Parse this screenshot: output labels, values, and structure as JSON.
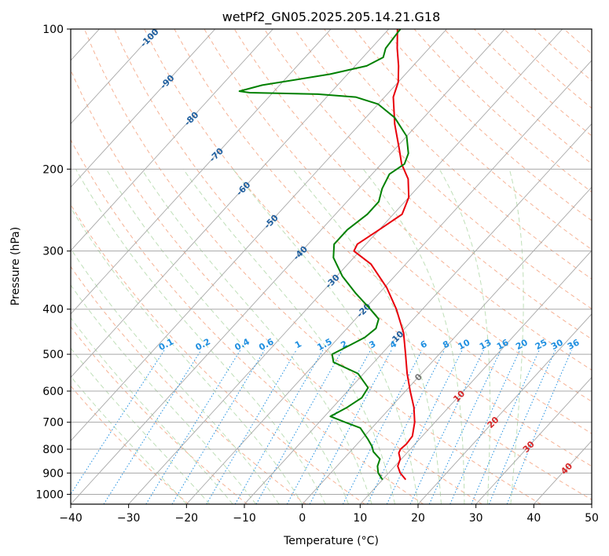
{
  "chart_data": {
    "type": "skew-t",
    "title": "wetPf2_GN05.2025.205.14.21.G18",
    "xlabel": "Temperature (°C)",
    "ylabel": "Pressure (hPa)",
    "xlim": [
      -40,
      50
    ],
    "ylim_pressure": [
      1050,
      100
    ],
    "x_ticks": [
      -40,
      -30,
      -20,
      -10,
      0,
      10,
      20,
      30,
      40,
      50
    ],
    "x_tick_labels": [
      "−40",
      "−30",
      "−20",
      "−10",
      "0",
      "10",
      "20",
      "30",
      "40",
      "50"
    ],
    "y_ticks": [
      100,
      200,
      300,
      400,
      500,
      600,
      700,
      800,
      900,
      1000
    ],
    "y_tick_labels": [
      "100",
      "200",
      "300",
      "400",
      "500",
      "600",
      "700",
      "800",
      "900",
      "1000"
    ],
    "grid": true,
    "colors": {
      "temperature": "#e8000b",
      "dewpoint": "#008000",
      "isotherm_labels": "#1f5f9f",
      "mixing_ratio": "#1f8fe0",
      "dry_adiabat": "#f4a582",
      "moist_adiabat": "#b8dcb0",
      "skewed_grid": "#a8a8a8",
      "highlight_isotherm_labels": "#d62728"
    },
    "series": [
      {
        "key": "temperature",
        "points": [
          {
            "p": 930,
            "t": 14.0
          },
          {
            "p": 900,
            "t": 12.0
          },
          {
            "p": 870,
            "t": 10.5
          },
          {
            "p": 840,
            "t": 9.8
          },
          {
            "p": 815,
            "t": 8.6
          },
          {
            "p": 800,
            "t": 8.3
          },
          {
            "p": 780,
            "t": 8.5
          },
          {
            "p": 750,
            "t": 8.3
          },
          {
            "p": 700,
            "t": 6.5
          },
          {
            "p": 650,
            "t": 4.0
          },
          {
            "p": 600,
            "t": 0.8
          },
          {
            "p": 550,
            "t": -2.5
          },
          {
            "p": 500,
            "t": -5.8
          },
          {
            "p": 450,
            "t": -9.5
          },
          {
            "p": 400,
            "t": -14.5
          },
          {
            "p": 360,
            "t": -19.5
          },
          {
            "p": 320,
            "t": -26.0
          },
          {
            "p": 300,
            "t": -31.0
          },
          {
            "p": 290,
            "t": -31.5
          },
          {
            "p": 270,
            "t": -30.0
          },
          {
            "p": 250,
            "t": -28.5
          },
          {
            "p": 230,
            "t": -30.0
          },
          {
            "p": 210,
            "t": -33.0
          },
          {
            "p": 195,
            "t": -36.5
          },
          {
            "p": 180,
            "t": -39.5
          },
          {
            "p": 160,
            "t": -44.0
          },
          {
            "p": 140,
            "t": -48.5
          },
          {
            "p": 130,
            "t": -50.0
          },
          {
            "p": 120,
            "t": -52.5
          },
          {
            "p": 110,
            "t": -55.5
          },
          {
            "p": 100,
            "t": -58.5
          }
        ]
      },
      {
        "key": "dewpoint",
        "points": [
          {
            "p": 930,
            "t": 10.0
          },
          {
            "p": 900,
            "t": 8.2
          },
          {
            "p": 870,
            "t": 7.0
          },
          {
            "p": 840,
            "t": 6.3
          },
          {
            "p": 810,
            "t": 4.0
          },
          {
            "p": 790,
            "t": 3.0
          },
          {
            "p": 760,
            "t": 1.0
          },
          {
            "p": 720,
            "t": -2.0
          },
          {
            "p": 700,
            "t": -5.5
          },
          {
            "p": 680,
            "t": -9.0
          },
          {
            "p": 650,
            "t": -7.5
          },
          {
            "p": 620,
            "t": -6.5
          },
          {
            "p": 590,
            "t": -7.0
          },
          {
            "p": 550,
            "t": -11.0
          },
          {
            "p": 520,
            "t": -17.0
          },
          {
            "p": 500,
            "t": -18.5
          },
          {
            "p": 480,
            "t": -17.0
          },
          {
            "p": 460,
            "t": -15.5
          },
          {
            "p": 440,
            "t": -15.0
          },
          {
            "p": 420,
            "t": -16.0
          },
          {
            "p": 400,
            "t": -19.0
          },
          {
            "p": 370,
            "t": -24.0
          },
          {
            "p": 340,
            "t": -29.0
          },
          {
            "p": 310,
            "t": -33.5
          },
          {
            "p": 290,
            "t": -35.5
          },
          {
            "p": 270,
            "t": -35.5
          },
          {
            "p": 250,
            "t": -34.5
          },
          {
            "p": 235,
            "t": -34.5
          },
          {
            "p": 220,
            "t": -36.0
          },
          {
            "p": 205,
            "t": -37.0
          },
          {
            "p": 195,
            "t": -36.0
          },
          {
            "p": 185,
            "t": -37.0
          },
          {
            "p": 170,
            "t": -40.0
          },
          {
            "p": 155,
            "t": -45.0
          },
          {
            "p": 145,
            "t": -50.0
          },
          {
            "p": 140,
            "t": -55.0
          },
          {
            "p": 138,
            "t": -62.0
          },
          {
            "p": 137,
            "t": -74.0
          },
          {
            "p": 136,
            "t": -76.0
          },
          {
            "p": 132,
            "t": -73.0
          },
          {
            "p": 125,
            "t": -63.0
          },
          {
            "p": 120,
            "t": -58.0
          },
          {
            "p": 115,
            "t": -56.5
          },
          {
            "p": 110,
            "t": -57.5
          },
          {
            "p": 100,
            "t": -58.0
          }
        ]
      }
    ],
    "isotherm_labels": [
      {
        "t": -100,
        "text": "-100"
      },
      {
        "t": -90,
        "text": "-90"
      },
      {
        "t": -80,
        "text": "-80"
      },
      {
        "t": -70,
        "text": "-70"
      },
      {
        "t": -60,
        "text": "-60"
      },
      {
        "t": -50,
        "text": "-50"
      },
      {
        "t": -40,
        "text": "-40"
      },
      {
        "t": -30,
        "text": "-30"
      },
      {
        "t": -20,
        "text": "-20"
      },
      {
        "t": -10,
        "text": "-10"
      }
    ],
    "mixing_ratio_labels": [
      "0.1",
      "0.2",
      "0.4",
      "0.6",
      "1",
      "1.5",
      "2",
      "3",
      "4",
      "6",
      "8",
      "10",
      "13",
      "16",
      "20",
      "25",
      "30",
      "36"
    ],
    "mixing_ratios": [
      0.1,
      0.2,
      0.4,
      0.6,
      1,
      1.5,
      2,
      3,
      4,
      6,
      8,
      10,
      13,
      16,
      20,
      25,
      30,
      36
    ],
    "lower_isotherm_labels": [
      {
        "t": 0,
        "text": "0"
      },
      {
        "t": 10,
        "text": "10"
      },
      {
        "t": 20,
        "text": "20"
      },
      {
        "t": 30,
        "text": "30"
      },
      {
        "t": 40,
        "text": "40"
      }
    ]
  }
}
